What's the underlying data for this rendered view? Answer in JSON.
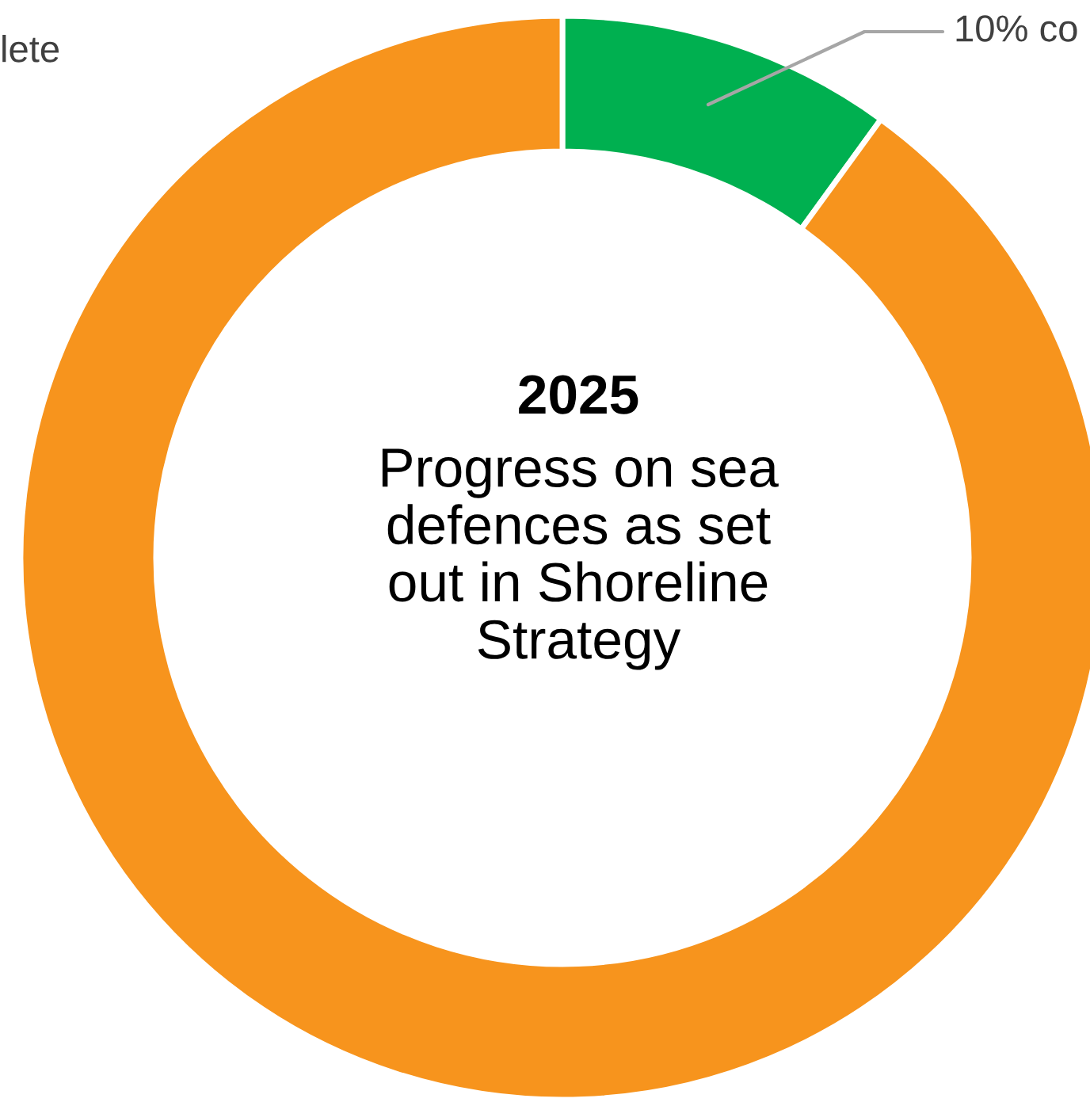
{
  "chart_data": {
    "type": "donut",
    "title": "2025",
    "subtitle": "Progress on sea\ndefences as set\nout in Shoreline\nStrategy",
    "categories": [
      null,
      null
    ],
    "values": [
      10,
      90
    ],
    "colors": [
      "#00b050",
      "#f7941d"
    ],
    "annotations": [
      "10% co",
      "lete"
    ]
  }
}
